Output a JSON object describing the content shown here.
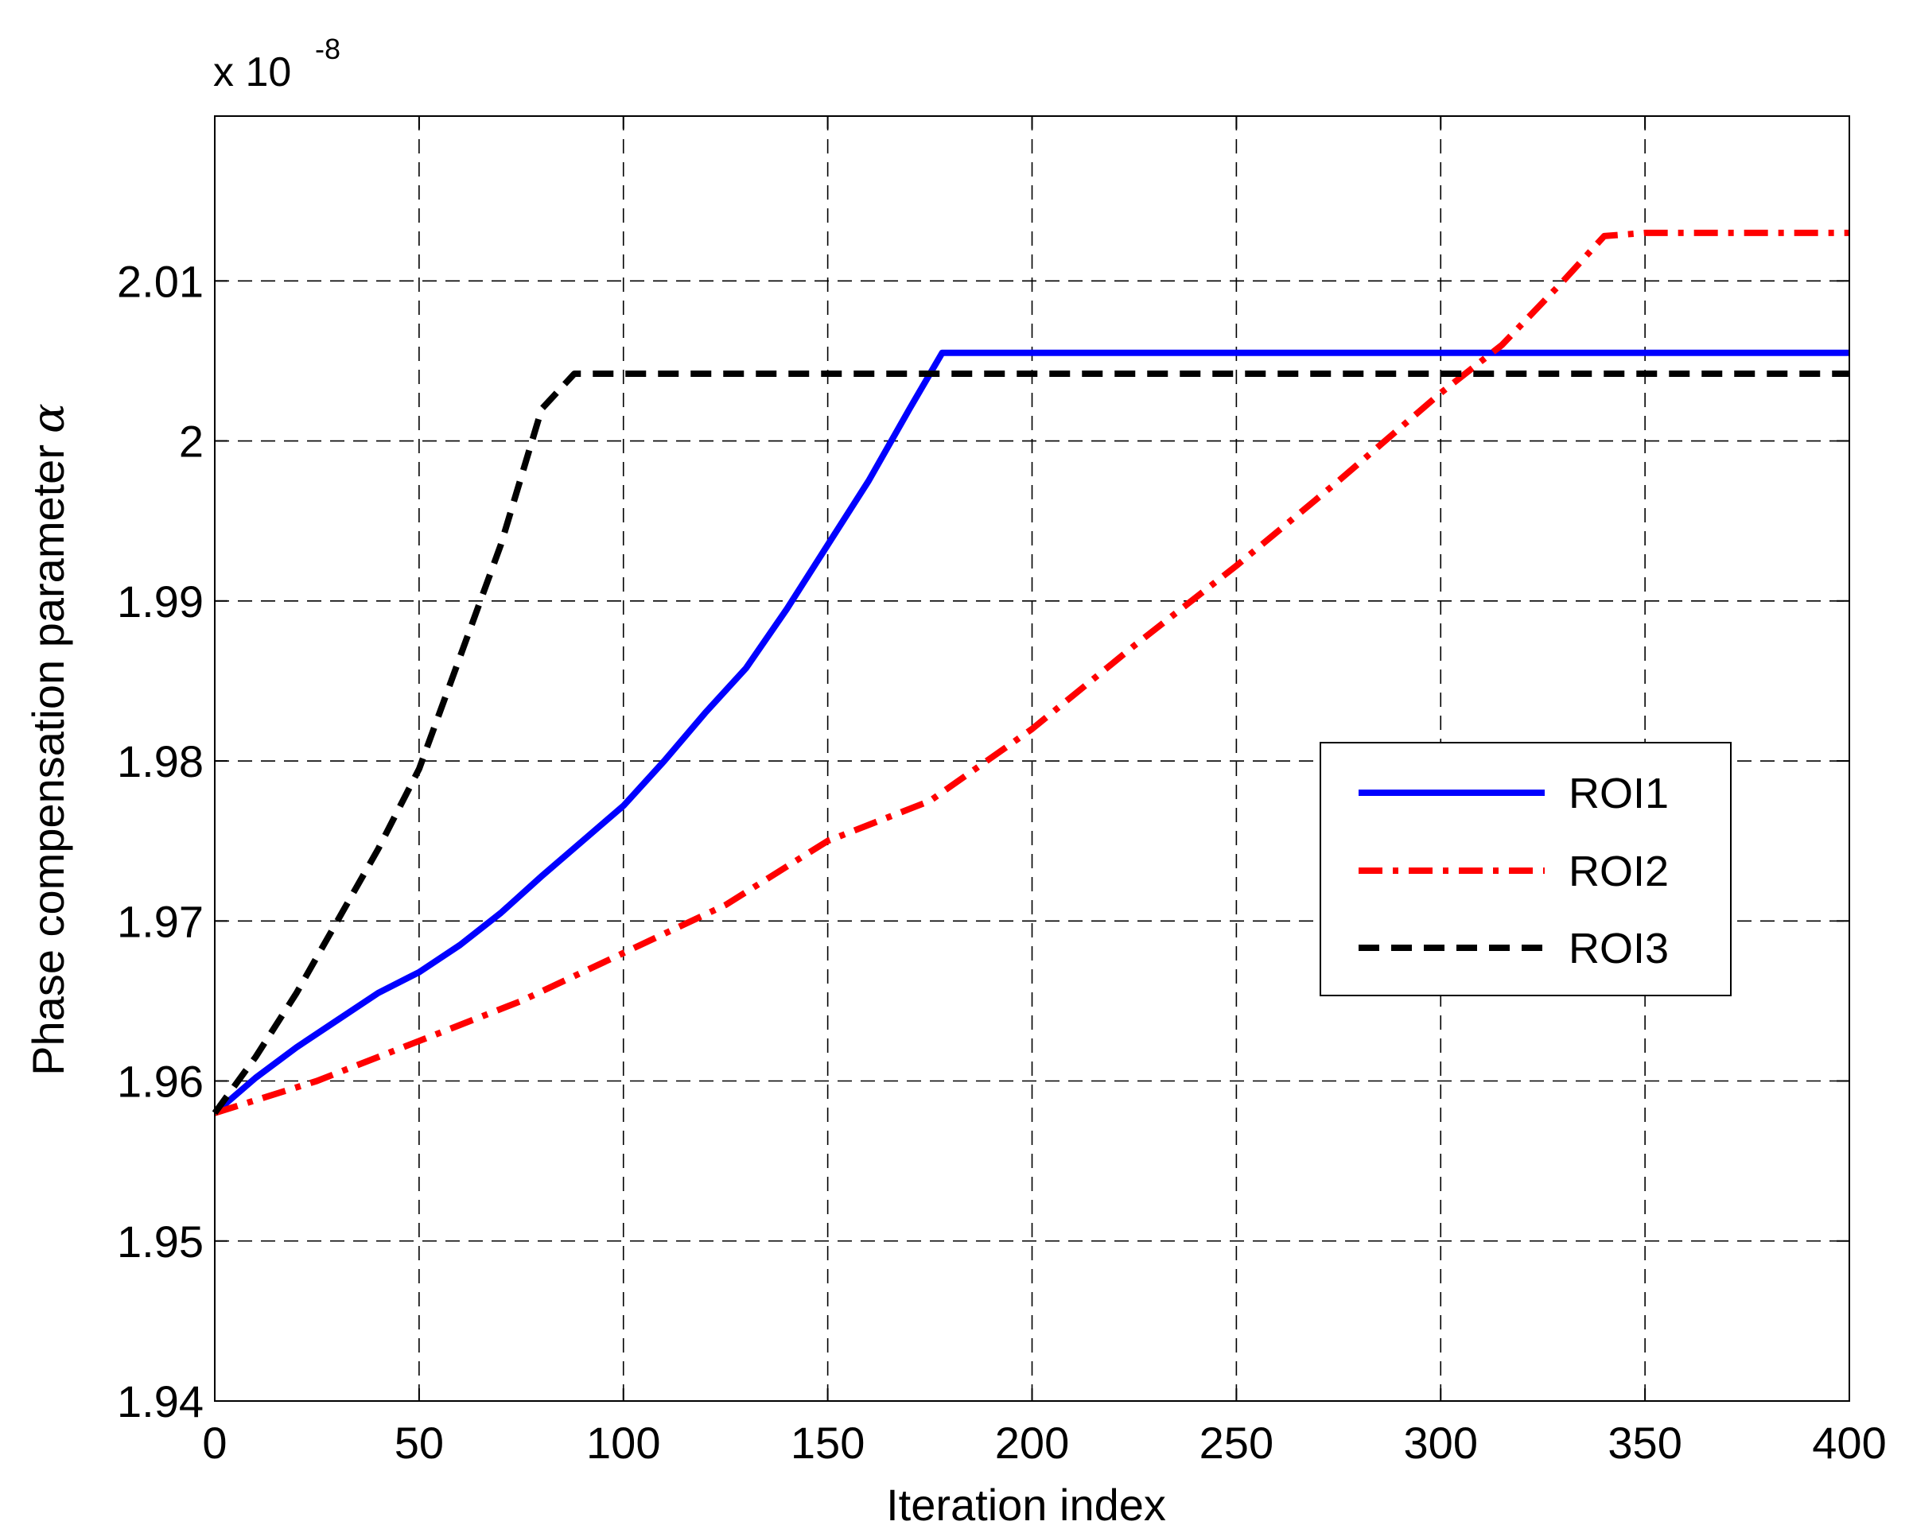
{
  "chart_data": {
    "type": "line",
    "title": "",
    "xlabel": "Iteration index",
    "ylabel": "Phase compensation parameter",
    "ylabel_symbol": "α",
    "y_multiplier": {
      "base": "x 10",
      "exponent": "-8"
    },
    "xlim": [
      0,
      400
    ],
    "ylim": [
      1.94,
      2.0203
    ],
    "x_ticks": [
      0,
      50,
      100,
      150,
      200,
      250,
      300,
      350,
      400
    ],
    "x_tick_labels": [
      "0",
      "50",
      "100",
      "150",
      "200",
      "250",
      "300",
      "350",
      "400"
    ],
    "y_ticks": [
      1.94,
      1.95,
      1.96,
      1.97,
      1.98,
      1.99,
      2.0,
      2.01
    ],
    "y_tick_labels": [
      "1.94",
      "1.95",
      "1.96",
      "1.97",
      "1.98",
      "1.99",
      "2",
      "2.01"
    ],
    "grid": true,
    "legend_position": "right-middle",
    "series": [
      {
        "name": "ROI1",
        "color": "#0000ff",
        "style": "solid",
        "x": [
          0,
          10,
          20,
          30,
          40,
          50,
          60,
          70,
          80,
          90,
          100,
          110,
          120,
          130,
          140,
          150,
          160,
          170,
          178,
          200,
          250,
          300,
          350,
          400
        ],
        "y": [
          1.958,
          1.9602,
          1.9621,
          1.9638,
          1.9655,
          1.9668,
          1.9685,
          1.9705,
          1.9728,
          1.975,
          1.9772,
          1.98,
          1.983,
          1.9858,
          1.9895,
          1.9935,
          1.9975,
          2.002,
          2.0055,
          2.0055,
          2.0055,
          2.0055,
          2.0055,
          2.0055
        ]
      },
      {
        "name": "ROI2",
        "color": "#ff0000",
        "style": "dash-dot",
        "x": [
          0,
          25,
          50,
          75,
          100,
          125,
          150,
          175,
          200,
          225,
          250,
          275,
          300,
          315,
          330,
          340,
          350,
          375,
          400
        ],
        "y": [
          1.958,
          1.96,
          1.9625,
          1.965,
          1.968,
          1.971,
          1.975,
          1.9775,
          1.982,
          1.9872,
          1.9922,
          1.9975,
          2.003,
          2.006,
          2.01,
          2.0128,
          2.013,
          2.013,
          2.013
        ]
      },
      {
        "name": "ROI3",
        "color": "#000000",
        "style": "dashed",
        "x": [
          0,
          10,
          20,
          30,
          40,
          50,
          60,
          70,
          80,
          88,
          100,
          150,
          200,
          250,
          300,
          350,
          400
        ],
        "y": [
          1.958,
          1.9615,
          1.9655,
          1.97,
          1.9745,
          1.9795,
          1.9865,
          1.9935,
          2.002,
          2.0042,
          2.0042,
          2.0042,
          2.0042,
          2.0042,
          2.0042,
          2.0042,
          2.0042
        ]
      }
    ]
  }
}
